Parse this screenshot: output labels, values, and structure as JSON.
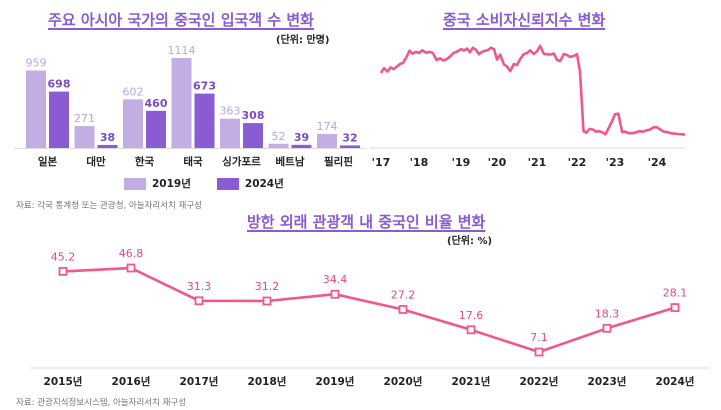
{
  "colors": {
    "bar_2019": "#c2aee3",
    "bar_2024": "#8a5cd1",
    "title": "#8a5cd1",
    "line_pink": "#f0588c",
    "label_2019": "#b9a6dc",
    "label_2024": "#7a4cc4",
    "label_pink": "#e8497f"
  },
  "chart_data": [
    {
      "type": "bar",
      "title": "주요 아시아 국가의 중국인 입국객 수 변화",
      "unit": "(단위: 만명)",
      "categories": [
        "일본",
        "대만",
        "한국",
        "태국",
        "싱가포르",
        "베트남",
        "필리핀"
      ],
      "series": [
        {
          "name": "2019년",
          "values": [
            959,
            271,
            602,
            1114,
            363,
            52,
            174
          ]
        },
        {
          "name": "2024년",
          "values": [
            698,
            38,
            460,
            673,
            308,
            39,
            32
          ]
        }
      ],
      "ylim": [
        0,
        1200
      ],
      "legend": "bottom",
      "source": "자료: 각국 통계청 또는 관광청, 아늘자리서치 재구성"
    },
    {
      "type": "line",
      "title": "중국 소비자신뢰지수 변화",
      "x_tick_labels": [
        "'17",
        "'18",
        "'19",
        "'20",
        "'21",
        "'22",
        "'23",
        "'24"
      ],
      "x_range": [
        2017,
        2024.8
      ],
      "ylim": [
        80,
        130
      ],
      "x": [
        2017.0,
        2017.08,
        2017.17,
        2017.25,
        2017.33,
        2017.42,
        2017.5,
        2017.58,
        2017.67,
        2017.75,
        2017.83,
        2017.92,
        2018.0,
        2018.08,
        2018.17,
        2018.25,
        2018.33,
        2018.42,
        2018.5,
        2018.58,
        2018.67,
        2018.75,
        2018.83,
        2018.92,
        2019.0,
        2019.08,
        2019.17,
        2019.25,
        2019.33,
        2019.42,
        2019.5,
        2019.58,
        2019.67,
        2019.75,
        2019.83,
        2019.92,
        2020.0,
        2020.08,
        2020.17,
        2020.25,
        2020.33,
        2020.42,
        2020.5,
        2020.58,
        2020.67,
        2020.75,
        2020.83,
        2020.92,
        2021.0,
        2021.08,
        2021.17,
        2021.25,
        2021.33,
        2021.42,
        2021.5,
        2021.58,
        2021.67,
        2021.75,
        2021.83,
        2021.92,
        2022.0,
        2022.08,
        2022.17,
        2022.25,
        2022.33,
        2022.42,
        2022.5,
        2022.58,
        2022.67,
        2022.75,
        2022.83,
        2022.92,
        2023.0,
        2023.08,
        2023.17,
        2023.25,
        2023.33,
        2023.42,
        2023.5,
        2023.58,
        2023.67,
        2023.75,
        2023.83,
        2023.92,
        2024.0,
        2024.08,
        2024.17,
        2024.25,
        2024.33,
        2024.42,
        2024.5,
        2024.58,
        2024.67
      ],
      "y": [
        112.6,
        114.7,
        113.2,
        115.0,
        114.3,
        115.5,
        116.5,
        117.0,
        119.5,
        122.3,
        121.0,
        121.8,
        121.3,
        122.5,
        121.4,
        121.8,
        121.3,
        118.2,
        119.0,
        118.0,
        118.7,
        120.0,
        121.4,
        122.0,
        123.0,
        122.4,
        123.2,
        121.6,
        123.6,
        122.6,
        120.8,
        121.8,
        122.2,
        122.6,
        123.6,
        122.9,
        118.5,
        120.6,
        116.4,
        115.5,
        113.4,
        116.5,
        116.1,
        118.7,
        120.8,
        121.3,
        122.5,
        120.9,
        122.0,
        124.4,
        120.9,
        120.8,
        120.6,
        121.1,
        118.3,
        117.8,
        120.9,
        120.4,
        119.6,
        120.0,
        120.8,
        113.2,
        87.3,
        86.7,
        88.3,
        88.0,
        87.1,
        87.3,
        86.8,
        86.0,
        88.5,
        91.6,
        94.7,
        94.9,
        86.9,
        87.1,
        86.4,
        86.5,
        86.8,
        87.3,
        87.1,
        87.6,
        88.0,
        89.0,
        89.0,
        88.0,
        87.1,
        86.9,
        86.4,
        86.2,
        86.1,
        86.0,
        85.8
      ]
    },
    {
      "type": "line",
      "title": "방한 외래 관광객 내 중국인 비율 변화",
      "unit": "(단위: %)",
      "categories": [
        "2015년",
        "2016년",
        "2017년",
        "2018년",
        "2019년",
        "2020년",
        "2021년",
        "2022년",
        "2023년",
        "2024년"
      ],
      "values": [
        45.2,
        46.8,
        31.3,
        31.2,
        34.4,
        27.2,
        17.6,
        7.1,
        18.3,
        28.1
      ],
      "ylim": [
        0,
        55
      ],
      "markers": "square",
      "source": "자료: 관광지식정보시스템, 아늘자리서치 재구성"
    }
  ]
}
